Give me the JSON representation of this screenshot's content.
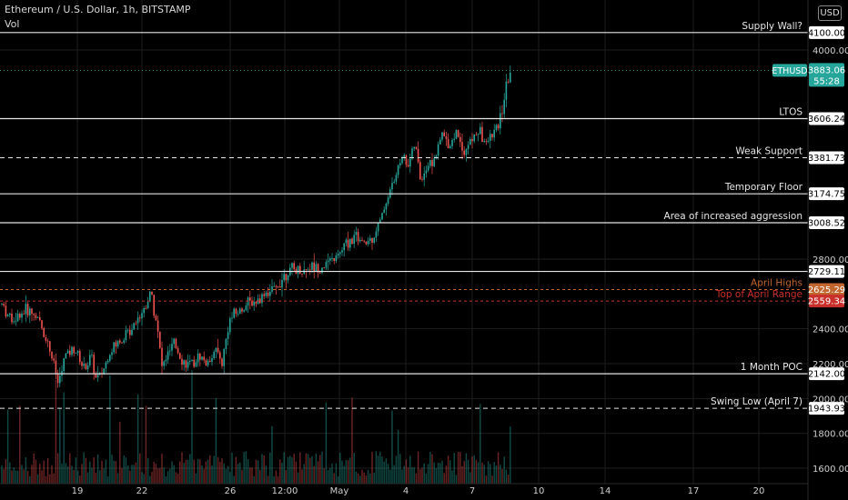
{
  "header": {
    "title": "Ethereum / U.S. Dollar, 1h, BITSTAMP",
    "volume_label": "Vol",
    "currency_button": "USD"
  },
  "chart_data": {
    "type": "candlestick",
    "symbol": "ETHUSD",
    "timeframe": "1h",
    "exchange": "BITSTAMP",
    "ylim": [
      1550,
      4250
    ],
    "yticks": [
      4000,
      2800,
      2400,
      2200,
      2000,
      1800,
      1600
    ],
    "ytick_labels": [
      "4000.00",
      "2800.00",
      "2400.00",
      "2200.00",
      "2000.00",
      "1800.00",
      "1600.00"
    ],
    "xlim": [
      0,
      932
    ],
    "xticks": [
      {
        "label": "19",
        "x": 85
      },
      {
        "label": "22",
        "x": 156
      },
      {
        "label": "26",
        "x": 253
      },
      {
        "label": "12:00",
        "x": 313
      },
      {
        "label": "May",
        "x": 373
      },
      {
        "label": "4",
        "x": 446
      },
      {
        "label": "7",
        "x": 519
      },
      {
        "label": "10",
        "x": 592
      },
      {
        "label": "14",
        "x": 665
      },
      {
        "label": "17",
        "x": 762
      },
      {
        "label": "20",
        "x": 834
      }
    ],
    "price_path": [
      {
        "x": 2,
        "y": 2540
      },
      {
        "x": 12,
        "y": 2450
      },
      {
        "x": 22,
        "y": 2480
      },
      {
        "x": 30,
        "y": 2510
      },
      {
        "x": 40,
        "y": 2470
      },
      {
        "x": 50,
        "y": 2360
      },
      {
        "x": 58,
        "y": 2220
      },
      {
        "x": 64,
        "y": 2080
      },
      {
        "x": 72,
        "y": 2250
      },
      {
        "x": 82,
        "y": 2290
      },
      {
        "x": 92,
        "y": 2170
      },
      {
        "x": 100,
        "y": 2240
      },
      {
        "x": 106,
        "y": 2100
      },
      {
        "x": 114,
        "y": 2170
      },
      {
        "x": 122,
        "y": 2280
      },
      {
        "x": 132,
        "y": 2330
      },
      {
        "x": 142,
        "y": 2390
      },
      {
        "x": 150,
        "y": 2460
      },
      {
        "x": 158,
        "y": 2510
      },
      {
        "x": 166,
        "y": 2610
      },
      {
        "x": 172,
        "y": 2440
      },
      {
        "x": 178,
        "y": 2180
      },
      {
        "x": 184,
        "y": 2250
      },
      {
        "x": 192,
        "y": 2310
      },
      {
        "x": 200,
        "y": 2220
      },
      {
        "x": 210,
        "y": 2180
      },
      {
        "x": 220,
        "y": 2250
      },
      {
        "x": 228,
        "y": 2190
      },
      {
        "x": 236,
        "y": 2290
      },
      {
        "x": 244,
        "y": 2200
      },
      {
        "x": 252,
        "y": 2450
      },
      {
        "x": 262,
        "y": 2500
      },
      {
        "x": 272,
        "y": 2540
      },
      {
        "x": 282,
        "y": 2560
      },
      {
        "x": 292,
        "y": 2610
      },
      {
        "x": 302,
        "y": 2620
      },
      {
        "x": 312,
        "y": 2710
      },
      {
        "x": 322,
        "y": 2740
      },
      {
        "x": 332,
        "y": 2730
      },
      {
        "x": 342,
        "y": 2760
      },
      {
        "x": 352,
        "y": 2750
      },
      {
        "x": 362,
        "y": 2780
      },
      {
        "x": 372,
        "y": 2820
      },
      {
        "x": 382,
        "y": 2900
      },
      {
        "x": 392,
        "y": 2930
      },
      {
        "x": 400,
        "y": 2880
      },
      {
        "x": 410,
        "y": 2930
      },
      {
        "x": 418,
        "y": 3020
      },
      {
        "x": 426,
        "y": 3160
      },
      {
        "x": 434,
        "y": 3260
      },
      {
        "x": 442,
        "y": 3400
      },
      {
        "x": 448,
        "y": 3340
      },
      {
        "x": 456,
        "y": 3460
      },
      {
        "x": 462,
        "y": 3260
      },
      {
        "x": 470,
        "y": 3340
      },
      {
        "x": 478,
        "y": 3380
      },
      {
        "x": 486,
        "y": 3520
      },
      {
        "x": 494,
        "y": 3450
      },
      {
        "x": 502,
        "y": 3540
      },
      {
        "x": 510,
        "y": 3420
      },
      {
        "x": 518,
        "y": 3480
      },
      {
        "x": 526,
        "y": 3540
      },
      {
        "x": 534,
        "y": 3460
      },
      {
        "x": 542,
        "y": 3520
      },
      {
        "x": 548,
        "y": 3560
      },
      {
        "x": 554,
        "y": 3720
      },
      {
        "x": 558,
        "y": 3820
      },
      {
        "x": 561,
        "y": 3883
      }
    ],
    "horizontal_levels": [
      {
        "label": "Supply Wall?",
        "price": 4100.0,
        "price_label": "4100.00",
        "style": "solid",
        "color": "#e6e6e6",
        "tag_bg": "#ffffff",
        "tag_fg": "#000000"
      },
      {
        "label": "LTOS",
        "price": 3606.24,
        "price_label": "3606.24",
        "style": "solid",
        "color": "#e6e6e6",
        "tag_bg": "#ffffff",
        "tag_fg": "#000000"
      },
      {
        "label": "Weak Support",
        "price": 3381.73,
        "price_label": "3381.73",
        "style": "dashed",
        "color": "#e6e6e6",
        "tag_bg": "#ffffff",
        "tag_fg": "#000000"
      },
      {
        "label": "Temporary Floor",
        "price": 3174.75,
        "price_label": "3174.75",
        "style": "solid",
        "color": "#e6e6e6",
        "tag_bg": "#ffffff",
        "tag_fg": "#000000"
      },
      {
        "label": "Area of increased aggression",
        "price": 3008.52,
        "price_label": "3008.52",
        "style": "solid",
        "color": "#e6e6e6",
        "tag_bg": "#ffffff",
        "tag_fg": "#000000"
      },
      {
        "label": "",
        "price": 2729.11,
        "price_label": "2729.11",
        "style": "solid",
        "color": "#e6e6e6",
        "tag_bg": "#ffffff",
        "tag_fg": "#000000"
      },
      {
        "label": "April Highs",
        "price": 2625.29,
        "price_label": "2625.29",
        "style": "dashed",
        "color": "#c1662f",
        "tag_bg": "#c1662f",
        "tag_fg": "#ffffff"
      },
      {
        "label": "Top of April Range",
        "price": 2559.34,
        "price_label": "2559.34",
        "style": "dashed",
        "color": "#c9302c",
        "tag_bg": "#c9302c",
        "tag_fg": "#ffffff"
      },
      {
        "label": "1 Month POC",
        "price": 2142.0,
        "price_label": "2142.00",
        "style": "solid",
        "color": "#e6e6e6",
        "tag_bg": "#ffffff",
        "tag_fg": "#000000"
      },
      {
        "label": "Swing Low (April 7)",
        "price": 1943.93,
        "price_label": "1943.93",
        "style": "dashed",
        "color": "#e6e6e6",
        "tag_bg": "#ffffff",
        "tag_fg": "#000000"
      }
    ],
    "current_price": {
      "symbol": "ETHUSD",
      "price": 3883.06,
      "price_label": "3883.06",
      "countdown": "55:28",
      "color": "#26a69a"
    },
    "colors": {
      "up": "#26a69a",
      "down": "#ef5350",
      "grid": "#1e1e1e",
      "background": "#000000"
    }
  }
}
